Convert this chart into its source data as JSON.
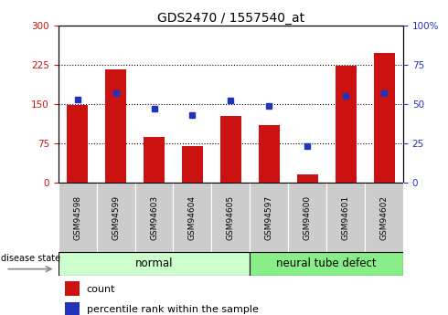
{
  "title": "GDS2470 / 1557540_at",
  "categories": [
    "GSM94598",
    "GSM94599",
    "GSM94603",
    "GSM94604",
    "GSM94605",
    "GSM94597",
    "GSM94600",
    "GSM94601",
    "GSM94602"
  ],
  "count_values": [
    148,
    215,
    88,
    70,
    128,
    110,
    15,
    222,
    248
  ],
  "percentile_values": [
    53,
    57,
    47,
    43,
    52,
    49,
    23,
    55,
    57
  ],
  "left_ylim": [
    0,
    300
  ],
  "right_ylim": [
    0,
    100
  ],
  "left_yticks": [
    0,
    75,
    150,
    225,
    300
  ],
  "right_yticks": [
    0,
    25,
    50,
    75,
    100
  ],
  "left_yticklabels": [
    "0",
    "75",
    "150",
    "225",
    "300"
  ],
  "right_yticklabels": [
    "0",
    "25",
    "50",
    "75",
    "100%"
  ],
  "bar_color": "#cc1111",
  "dot_color": "#2233bb",
  "normal_label": "normal",
  "defect_label": "neural tube defect",
  "group_label": "disease state",
  "legend_count": "count",
  "legend_pct": "percentile rank within the sample",
  "group_fill_normal": "#ccffcc",
  "group_fill_defect": "#88ee88",
  "tick_bg": "#cccccc",
  "title_fontsize": 10,
  "axis_fontsize": 7.5,
  "label_fontsize": 8.5,
  "tick_label_fontsize": 6.5
}
